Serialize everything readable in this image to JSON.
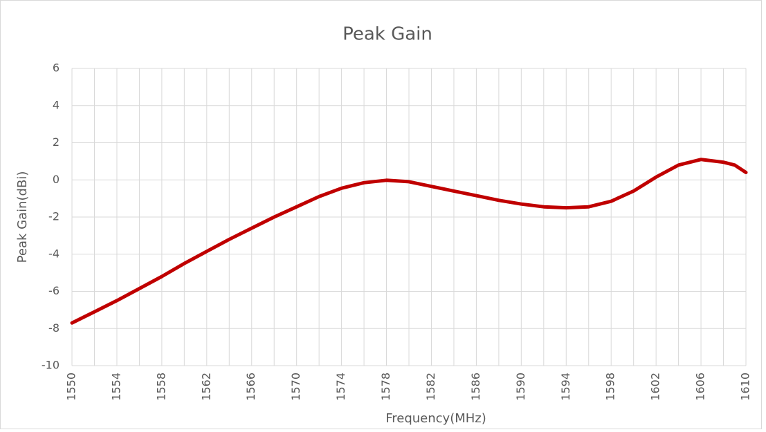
{
  "chart_data": {
    "type": "line",
    "title": "Peak Gain",
    "x_label": "Frequency(MHz)",
    "y_label": "Peak Gain(dBi)",
    "x": [
      1550,
      1552,
      1554,
      1556,
      1558,
      1560,
      1562,
      1564,
      1566,
      1568,
      1570,
      1572,
      1574,
      1576,
      1578,
      1580,
      1582,
      1584,
      1586,
      1588,
      1590,
      1592,
      1594,
      1596,
      1598,
      1600,
      1602,
      1604,
      1606,
      1608,
      1609,
      1610
    ],
    "series": [
      {
        "name": "Peak Gain",
        "color": "#c00000",
        "values": [
          -7.7,
          -7.1,
          -6.5,
          -5.85,
          -5.2,
          -4.5,
          -3.85,
          -3.2,
          -2.6,
          -2.0,
          -1.45,
          -0.9,
          -0.45,
          -0.15,
          -0.02,
          -0.1,
          -0.35,
          -0.6,
          -0.85,
          -1.1,
          -1.3,
          -1.45,
          -1.5,
          -1.45,
          -1.15,
          -0.6,
          0.15,
          0.8,
          1.1,
          0.95,
          0.8,
          0.4
        ]
      }
    ],
    "xlim": [
      1550,
      1610
    ],
    "xticks": [
      1550,
      1554,
      1558,
      1562,
      1566,
      1570,
      1574,
      1578,
      1582,
      1586,
      1590,
      1594,
      1598,
      1602,
      1606,
      1610
    ],
    "xgrid": [
      1550,
      1552,
      1554,
      1556,
      1558,
      1560,
      1562,
      1564,
      1566,
      1568,
      1570,
      1572,
      1574,
      1576,
      1578,
      1580,
      1582,
      1584,
      1586,
      1588,
      1590,
      1592,
      1594,
      1596,
      1598,
      1600,
      1602,
      1604,
      1606,
      1608,
      1610
    ],
    "ylim": [
      -10,
      6
    ],
    "yticks": [
      -10,
      -8,
      -6,
      -4,
      -2,
      0,
      2,
      4,
      6
    ],
    "grid": true
  }
}
